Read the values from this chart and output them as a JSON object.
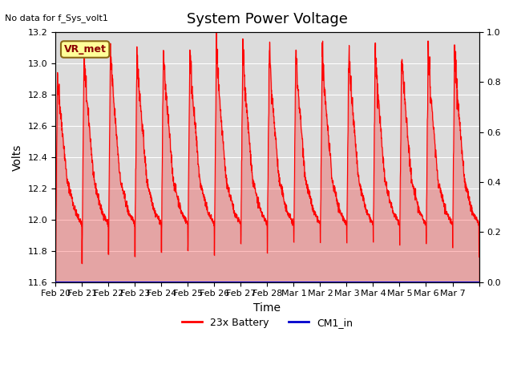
{
  "title": "System Power Voltage",
  "no_data_label": "No data for f_Sys_volt1",
  "ylabel": "Volts",
  "xlabel": "Time",
  "ylim": [
    11.6,
    13.2
  ],
  "ylim_right": [
    0.0,
    1.0
  ],
  "yticks_left": [
    11.6,
    11.8,
    12.0,
    12.2,
    12.4,
    12.6,
    12.8,
    13.0,
    13.2
  ],
  "yticks_right": [
    0.0,
    0.2,
    0.4,
    0.6,
    0.8,
    1.0
  ],
  "xtick_positions": [
    0,
    1,
    2,
    3,
    4,
    5,
    6,
    7,
    8,
    9,
    10,
    11,
    12,
    13,
    14,
    15,
    16
  ],
  "xtick_labels": [
    "Feb 20",
    "Feb 21",
    "Feb 22",
    "Feb 23",
    "Feb 24",
    "Feb 25",
    "Feb 26",
    "Feb 27",
    "Feb 28",
    "Mar 1",
    "Mar 2",
    "Mar 3",
    "Mar 4",
    "Mar 5",
    "Mar 6",
    "Mar 7",
    ""
  ],
  "line_color_battery": "#FF0000",
  "line_color_cm1": "#0000CC",
  "legend_battery": "23x Battery",
  "legend_cm1": "CM1_in",
  "vr_met_label": "VR_met",
  "vr_met_bg": "#FFFF99",
  "vr_met_border": "#8B6914",
  "background_color": "#DCDCDC",
  "grid_color": "#FFFFFF",
  "title_fontsize": 13,
  "axis_label_fontsize": 10,
  "tick_fontsize": 8
}
